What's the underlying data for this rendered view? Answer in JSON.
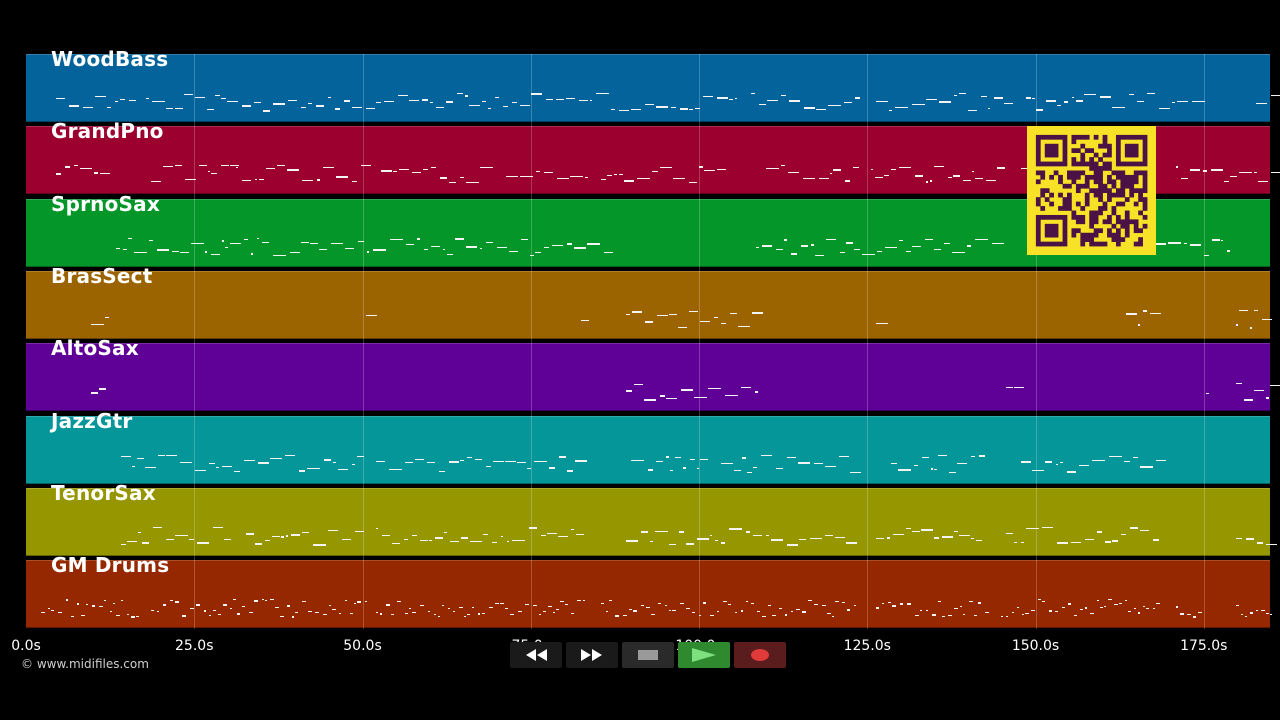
{
  "tracks": [
    {
      "name": "WoodBass",
      "color": "#05639b"
    },
    {
      "name": "GrandPno",
      "color": "#9b002f"
    },
    {
      "name": "SprnoSax",
      "color": "#05962a"
    },
    {
      "name": "BrasSect",
      "color": "#9b6400"
    },
    {
      "name": "AltoSax",
      "color": "#5f0096"
    },
    {
      "name": "JazzGtr",
      "color": "#05969a"
    },
    {
      "name": "TenorSax",
      "color": "#969600"
    },
    {
      "name": "GM Drums",
      "color": "#962800"
    }
  ],
  "timeline": {
    "ticks": [
      "0.0s",
      "25.0s",
      "50.0s",
      "75.0s",
      "100.0s",
      "125.0s",
      "150.0s",
      "175.0s"
    ],
    "unit": "s"
  },
  "copyright": "© www.midifiles.com",
  "transport": {
    "rewind_icon": "rewind-icon",
    "forward_icon": "fast-forward-icon",
    "stop_icon": "stop-icon",
    "play_icon": "play-icon",
    "record_icon": "record-icon"
  },
  "colors": {
    "qr_background": "#f7e227",
    "qr_foreground": "#4a1245",
    "play_button": "#2f8a2f",
    "record_button": "#5a1c1c"
  }
}
